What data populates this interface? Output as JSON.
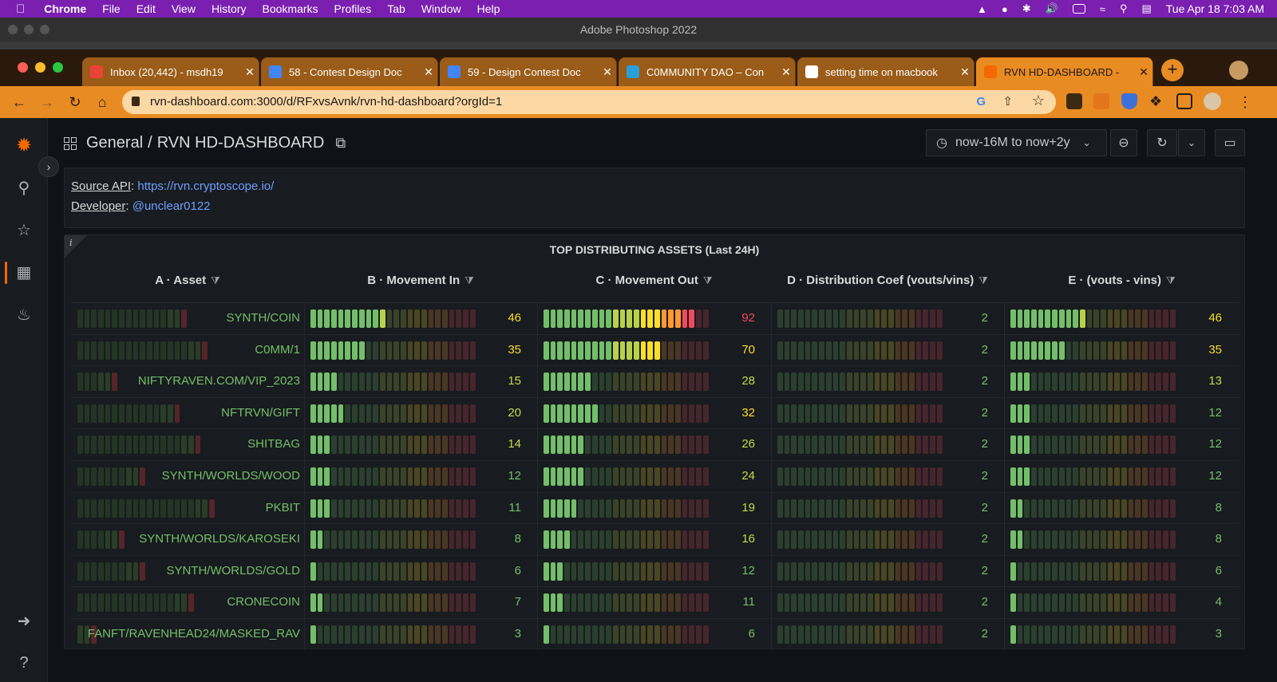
{
  "mac_menu": {
    "apple_icon": "apple-icon",
    "app": "Chrome",
    "items": [
      "File",
      "Edit",
      "View",
      "History",
      "Bookmarks",
      "Profiles",
      "Tab",
      "Window",
      "Help"
    ],
    "clock": "Tue Apr 18  7:03 AM"
  },
  "photoshop": {
    "title": "Adobe Photoshop 2022"
  },
  "chrome": {
    "tabs": [
      {
        "title": "Inbox (20,442) - msdh19",
        "icon": "gmail-icon",
        "color": "#ea4335",
        "active": false
      },
      {
        "title": "58 - Contest Design Doc",
        "icon": "docs-icon",
        "color": "#4285f4",
        "active": false
      },
      {
        "title": "59 - Design Contest Doc",
        "icon": "docs-icon",
        "color": "#4285f4",
        "active": false
      },
      {
        "title": "C0MMUNITY DAO – Con",
        "icon": "dao-icon",
        "color": "#2aa0d8",
        "active": false
      },
      {
        "title": "setting time on macbook",
        "icon": "google-icon",
        "color": "#ffffff",
        "active": false
      },
      {
        "title": "RVN HD-DASHBOARD -",
        "icon": "grafana-icon",
        "color": "#f46800",
        "active": true
      }
    ],
    "url": "rvn-dashboard.com:3000/d/RFxvsAvnk/rvn-hd-dashboard?orgId=1"
  },
  "dashboard": {
    "breadcrumb_folder": "General",
    "breadcrumb_sep": "/",
    "breadcrumb_title": "RVN HD-DASHBOARD",
    "time_range": "now-16M to now+2y",
    "text_panel": {
      "source_label": "Source API",
      "source_url": "https://rvn.cryptoscope.io/",
      "developer_label": "Developer",
      "developer_handle": "@unclear0122",
      "sep": ":"
    },
    "table": {
      "title": "TOP DISTRIBUTING ASSETS (Last 24H)",
      "info_icon": "i",
      "columns": [
        "A · Asset",
        "B · Movement In",
        "C · Movement Out",
        "D · Distribution Coef (vouts/vins)",
        "E · (vouts - vins)"
      ],
      "rows": [
        {
          "asset": "SYNTH/COIN",
          "in": 46,
          "out": 92,
          "coef": 2,
          "diff": 46
        },
        {
          "asset": "C0MM/1",
          "in": 35,
          "out": 70,
          "coef": 2,
          "diff": 35
        },
        {
          "asset": "NIFTYRAVEN.COM/VIP_2023",
          "in": 15,
          "out": 28,
          "coef": 2,
          "diff": 13
        },
        {
          "asset": "NFTRVN/GIFT",
          "in": 20,
          "out": 32,
          "coef": 2,
          "diff": 12
        },
        {
          "asset": "SHITBAG",
          "in": 14,
          "out": 26,
          "coef": 2,
          "diff": 12
        },
        {
          "asset": "SYNTH/WORLDS/WOOD",
          "in": 12,
          "out": 24,
          "coef": 2,
          "diff": 12
        },
        {
          "asset": "PKBIT",
          "in": 11,
          "out": 19,
          "coef": 2,
          "diff": 8
        },
        {
          "asset": "SYNTH/WORLDS/KAROSEKI",
          "in": 8,
          "out": 16,
          "coef": 2,
          "diff": 8
        },
        {
          "asset": "SYNTH/WORLDS/GOLD",
          "in": 6,
          "out": 12,
          "coef": 2,
          "diff": 6
        },
        {
          "asset": "CRONECOIN",
          "in": 7,
          "out": 11,
          "coef": 2,
          "diff": 4
        },
        {
          "asset": "FANFT/RAVENHEAD24/MASKED_RAV",
          "in": 3,
          "out": 6,
          "coef": 2,
          "diff": 3
        }
      ],
      "gauge_max": {
        "in": 100,
        "out": 100,
        "coef": 100,
        "diff": 100
      },
      "colors": {
        "green": "#73bf69",
        "yellow": "#fade2a",
        "orange": "#ff9830",
        "red": "#f2495c"
      }
    }
  }
}
